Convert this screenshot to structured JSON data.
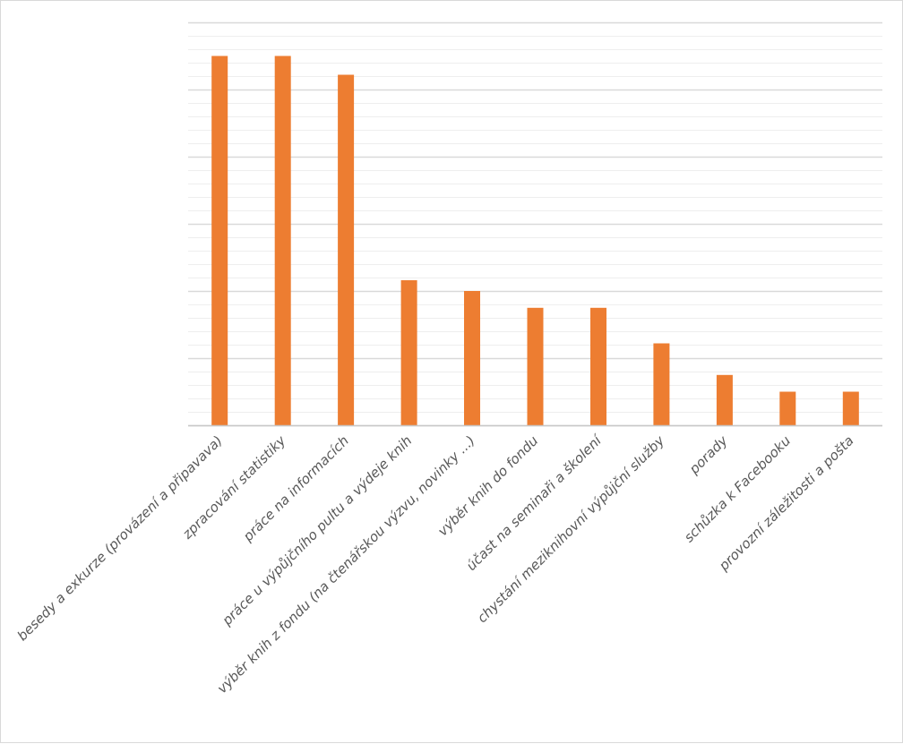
{
  "chart_data": {
    "type": "bar",
    "categories": [
      "besedy a exkurze (provázení a připavava)",
      "zpracování statistiky",
      "práce na informacích",
      "práce u výpůjčního pultu a výdeje knih",
      "výběr knih z fondu (na čtenářskou výzvu, novinky ...)",
      "výběr knih do fondu",
      "účast na seminaři a školení",
      "chystání meziknihovní výpůjční služby",
      "porady",
      "schůzka k Facebooku",
      "provozní záležitosti a pošta"
    ],
    "values": [
      27.5,
      27.5,
      26.1,
      10.8,
      10.0,
      8.75,
      8.75,
      6.1,
      3.75,
      2.5,
      2.5
    ],
    "title": "",
    "xlabel": "",
    "ylabel": "",
    "ylim": [
      0,
      30
    ],
    "major_grid_step": 5,
    "minor_grid_step": 1,
    "grid": true,
    "legend": "none",
    "bar_color": "#ED7D31",
    "grid_color": "#d9d9d9",
    "minor_grid_color": "#eeeeee"
  }
}
